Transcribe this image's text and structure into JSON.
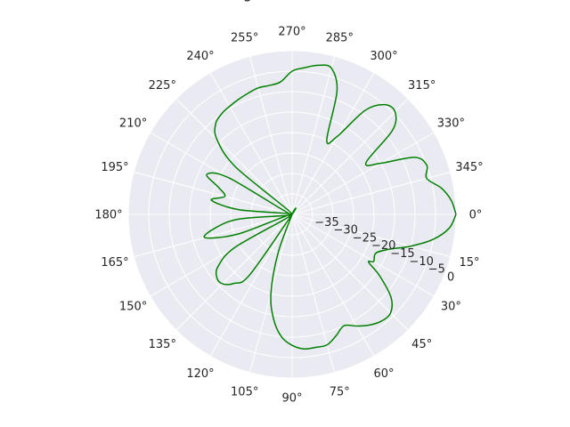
{
  "chart_data": {
    "type": "polar-line",
    "title": "g",
    "theta_direction": "clockwise",
    "theta_zero_location": "east",
    "angle_tick_labels": [
      "0°",
      "15°",
      "30°",
      "45°",
      "60°",
      "75°",
      "90°",
      "105°",
      "120°",
      "135°",
      "150°",
      "165°",
      "180°",
      "195°",
      "210°",
      "225°",
      "240°",
      "255°",
      "270°",
      "285°",
      "300°",
      "315°",
      "330°",
      "345°"
    ],
    "angle_tick_degrees": [
      0,
      15,
      30,
      45,
      60,
      75,
      90,
      105,
      120,
      135,
      150,
      165,
      180,
      195,
      210,
      225,
      240,
      255,
      270,
      285,
      300,
      315,
      330,
      345
    ],
    "radial_ticks": [
      -35,
      -30,
      -25,
      -20,
      -15,
      -10,
      -5,
      0
    ],
    "radial_tick_labels": [
      "−35",
      "−30",
      "−25",
      "−20",
      "−15",
      "−10",
      "−5",
      "0"
    ],
    "rlim": [
      -40,
      0
    ],
    "grid": true,
    "background": "#EAEAF2",
    "grid_color": "#ffffff",
    "series": [
      {
        "color": "#008000",
        "theta_deg": [
          0,
          5,
          10,
          15,
          20,
          25,
          30,
          32,
          35,
          40,
          45,
          50,
          55,
          60,
          65,
          70,
          75,
          80,
          85,
          90,
          95,
          100,
          105,
          110,
          115,
          120,
          125,
          130,
          135,
          140,
          145,
          150,
          155,
          160,
          165,
          170,
          175,
          180,
          185,
          190,
          195,
          200,
          205,
          210,
          215,
          220,
          225,
          230,
          235,
          240,
          245,
          250,
          255,
          260,
          265,
          270,
          275,
          280,
          285,
          290,
          295,
          300,
          305,
          310,
          315,
          320,
          325,
          330,
          335,
          340,
          345,
          350,
          355,
          360
        ],
        "r_db": [
          0,
          -1.5,
          -5,
          -10,
          -15,
          -17.5,
          -17,
          -18,
          -14,
          -8.5,
          -6,
          -6,
          -7,
          -8.5,
          -10,
          -8.5,
          -7,
          -7,
          -7,
          -8,
          -10,
          -14,
          -20,
          -30,
          -40,
          -40,
          -22,
          -18,
          -16,
          -16,
          -18,
          -24,
          -40,
          -26,
          -18,
          -21,
          -27,
          -40,
          -27,
          -20,
          -23,
          -21,
          -17,
          -22,
          -40,
          -22,
          -14,
          -11,
          -10,
          -9.5,
          -9,
          -8.5,
          -8,
          -8,
          -7.5,
          -5,
          -4,
          -3,
          -3,
          -8,
          -20,
          -18,
          -9,
          -5,
          -4.5,
          -8,
          -18,
          -15,
          -7,
          -5,
          -6,
          -3,
          -1,
          0
        ]
      }
    ]
  }
}
